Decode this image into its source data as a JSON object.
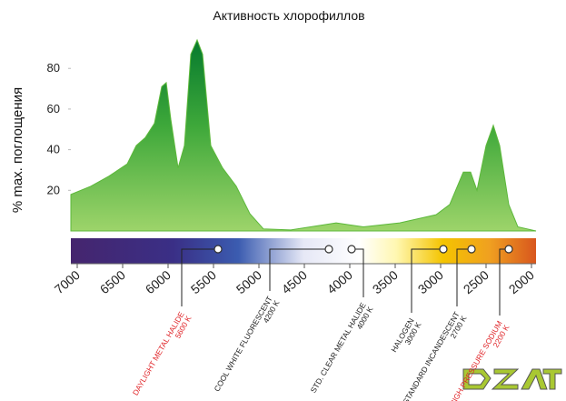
{
  "chart_data": {
    "type": "area",
    "title": "Активность хлорофиллов",
    "y_label": "% max. поглощения",
    "xlim": [
      7070,
      1950
    ],
    "ylim": [
      0,
      98
    ],
    "xticks": [
      7000,
      6500,
      6000,
      5500,
      5000,
      4500,
      4000,
      3500,
      3000,
      2500,
      2000
    ],
    "yticks": [
      20,
      40,
      60,
      80
    ],
    "x": [
      7070,
      6850,
      6650,
      6450,
      6350,
      6250,
      6150,
      6070,
      6020,
      5970,
      5890,
      5820,
      5750,
      5680,
      5620,
      5530,
      5400,
      5250,
      5100,
      4950,
      4650,
      4150,
      3850,
      3450,
      3050,
      2900,
      2750,
      2670,
      2600,
      2500,
      2420,
      2350,
      2250,
      2150,
      1950
    ],
    "values": [
      18,
      22,
      27,
      33,
      42,
      46,
      53,
      71,
      73,
      55,
      31,
      42,
      87,
      94,
      87,
      42,
      31,
      22,
      8.5,
      1,
      0.5,
      4,
      2,
      4,
      8,
      13,
      29,
      29,
      20,
      42,
      52,
      42,
      13,
      2,
      0
    ],
    "color": "#5cb83a",
    "lamps": [
      {
        "name": "DAYLIGHT METAL HALIDE",
        "kelvin": "5600 K",
        "x": 5450,
        "color": "#e0262a"
      },
      {
        "name": "COOL WHITE FLUORESCENT",
        "kelvin": "4200 K",
        "x": 4230,
        "color": "#222222"
      },
      {
        "name": "STD. CLEAR METAL HALIDE",
        "kelvin": "4000 K",
        "x": 3980,
        "color": "#222222"
      },
      {
        "name": "HALOGEN",
        "kelvin": "3000 K",
        "x": 2970,
        "color": "#222222"
      },
      {
        "name": "STANDARD INCANDESCENT",
        "kelvin": "2700 K",
        "x": 2660,
        "color": "#222222"
      },
      {
        "name": "HIGH PRESSURE SODIUM",
        "kelvin": "2200 K",
        "x": 2250,
        "color": "#e0262a"
      }
    ]
  }
}
